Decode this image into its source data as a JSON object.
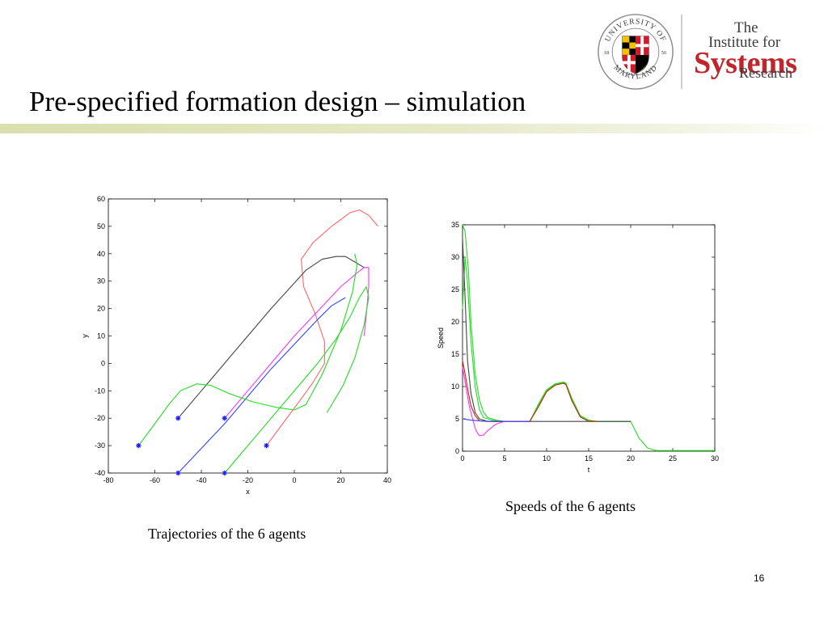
{
  "slide": {
    "title": "Pre-specified formation design – simulation",
    "page_number": "16",
    "caption_trajectories": "Trajectories of the 6 agents",
    "caption_speeds": "Speeds of the 6 agents"
  },
  "logos": {
    "umd": {
      "text_top": "UNIVERSITY OF",
      "text_bottom": "MARYLAND",
      "year_left": "18",
      "year_right": "56"
    },
    "isr": {
      "line1": "The",
      "line2": "Institute for",
      "line3": "Systems",
      "line4": "Research"
    }
  },
  "colors": {
    "title_bar": "#d9dfae",
    "isr_red": "#c0272d",
    "series": [
      "#ff6666",
      "#444444",
      "#ff33ff",
      "#3344ff",
      "#22dd22",
      "#22dd22"
    ]
  },
  "chart_data": [
    {
      "type": "line",
      "xlabel": "x",
      "ylabel": "y",
      "xlim": [
        -80,
        40
      ],
      "ylim": [
        -40,
        60
      ],
      "xticks": [
        -80,
        -60,
        -40,
        -20,
        0,
        20,
        40
      ],
      "yticks": [
        -40,
        -30,
        -20,
        -10,
        0,
        10,
        20,
        30,
        40,
        50,
        60
      ],
      "start_markers": [
        {
          "x": -67,
          "y": -30
        },
        {
          "x": -50,
          "y": -20
        },
        {
          "x": -50,
          "y": -40
        },
        {
          "x": -30,
          "y": -20
        },
        {
          "x": -30,
          "y": -40
        },
        {
          "x": -12,
          "y": -30
        }
      ],
      "series": [
        {
          "color": "#ff6666",
          "points": [
            [
              -12,
              -30
            ],
            [
              -5,
              -22
            ],
            [
              2,
              -14
            ],
            [
              8,
              -7
            ],
            [
              13,
              0
            ],
            [
              13,
              8
            ],
            [
              9,
              18
            ],
            [
              4,
              28
            ],
            [
              3,
              38
            ],
            [
              8,
              44
            ],
            [
              16,
              50
            ],
            [
              24,
              55
            ],
            [
              28,
              56
            ],
            [
              32,
              54
            ],
            [
              36,
              50
            ]
          ]
        },
        {
          "color": "#444444",
          "points": [
            [
              -50,
              -20
            ],
            [
              -40,
              -10
            ],
            [
              -25,
              5
            ],
            [
              -10,
              20
            ],
            [
              5,
              34
            ],
            [
              12,
              38
            ],
            [
              18,
              39
            ],
            [
              22,
              39
            ],
            [
              26,
              37
            ],
            [
              30,
              35
            ]
          ]
        },
        {
          "color": "#ff33ff",
          "points": [
            [
              -30,
              -20
            ],
            [
              -20,
              -10
            ],
            [
              -10,
              0
            ],
            [
              0,
              10
            ],
            [
              10,
              19
            ],
            [
              20,
              28
            ],
            [
              27,
              33
            ],
            [
              30,
              35
            ],
            [
              32,
              35
            ],
            [
              32,
              28
            ],
            [
              31,
              18
            ],
            [
              30,
              10
            ]
          ]
        },
        {
          "color": "#3344ff",
          "points": [
            [
              -50,
              -40
            ],
            [
              -40,
              -31
            ],
            [
              -30,
              -22
            ],
            [
              -20,
              -12
            ],
            [
              -10,
              -2
            ],
            [
              0,
              7
            ],
            [
              10,
              16
            ],
            [
              16,
              21
            ],
            [
              22,
              24
            ]
          ]
        },
        {
          "color": "#22dd22",
          "points": [
            [
              -67,
              -30
            ],
            [
              -60,
              -22
            ],
            [
              -54,
              -15
            ],
            [
              -49,
              -10
            ],
            [
              -42,
              -7.5
            ],
            [
              -36,
              -8
            ],
            [
              -28,
              -11
            ],
            [
              -18,
              -14
            ],
            [
              -8,
              -16
            ],
            [
              0,
              -17
            ],
            [
              5,
              -15
            ],
            [
              12,
              -4
            ],
            [
              20,
              12
            ],
            [
              25,
              26
            ],
            [
              27,
              36
            ],
            [
              26,
              40
            ]
          ]
        },
        {
          "color": "#22dd22",
          "points": [
            [
              -30,
              -40
            ],
            [
              -22,
              -32
            ],
            [
              -14,
              -24
            ],
            [
              -6,
              -16
            ],
            [
              2,
              -8
            ],
            [
              10,
              0
            ],
            [
              18,
              9
            ],
            [
              24,
              17
            ],
            [
              28,
              24
            ],
            [
              31,
              28
            ],
            [
              32,
              24
            ],
            [
              30,
              14
            ],
            [
              26,
              2
            ],
            [
              21,
              -8
            ],
            [
              14,
              -18
            ]
          ]
        }
      ]
    },
    {
      "type": "line",
      "xlabel": "t",
      "ylabel": "Speed",
      "xlim": [
        0,
        30
      ],
      "ylim": [
        0,
        35
      ],
      "xticks": [
        0,
        5,
        10,
        15,
        20,
        25,
        30
      ],
      "yticks": [
        0,
        5,
        10,
        15,
        20,
        25,
        30,
        35
      ],
      "series": [
        {
          "color": "#22dd22",
          "points": [
            [
              0,
              35
            ],
            [
              0.3,
              34
            ],
            [
              0.7,
              28
            ],
            [
              1,
              20
            ],
            [
              1.5,
              12
            ],
            [
              2,
              8
            ],
            [
              2.5,
              6
            ],
            [
              3,
              5.2
            ],
            [
              4,
              4.8
            ],
            [
              5,
              4.6
            ],
            [
              8,
              4.6
            ],
            [
              9,
              7
            ],
            [
              10,
              9.3
            ],
            [
              11,
              10.3
            ],
            [
              12,
              10.6
            ],
            [
              12.3,
              10.4
            ],
            [
              13,
              8
            ],
            [
              14,
              5.5
            ],
            [
              15,
              4.8
            ],
            [
              16,
              4.6
            ],
            [
              20,
              4.6
            ],
            [
              21,
              2
            ],
            [
              22,
              0.5
            ],
            [
              23,
              0.1
            ],
            [
              30,
              0.1
            ]
          ]
        },
        {
          "color": "#22dd22",
          "points": [
            [
              0,
              22
            ],
            [
              0.3,
              30
            ],
            [
              0.6,
              26
            ],
            [
              1,
              17
            ],
            [
              1.5,
              10
            ],
            [
              2,
              6.5
            ],
            [
              2.5,
              5.2
            ],
            [
              3.5,
              4.8
            ],
            [
              5,
              4.6
            ],
            [
              8,
              4.6
            ],
            [
              9,
              7.2
            ],
            [
              10,
              9.5
            ],
            [
              11,
              10.4
            ],
            [
              12,
              10.7
            ],
            [
              12.3,
              10.5
            ],
            [
              13,
              8.2
            ],
            [
              14,
              5.5
            ],
            [
              15,
              4.7
            ],
            [
              16,
              4.6
            ],
            [
              20,
              4.6
            ]
          ]
        },
        {
          "color": "#444444",
          "points": [
            [
              0,
              33
            ],
            [
              0.3,
              24
            ],
            [
              0.6,
              14
            ],
            [
              1,
              9
            ],
            [
              1.5,
              6
            ],
            [
              2,
              5
            ],
            [
              3,
              4.6
            ],
            [
              5,
              4.6
            ],
            [
              10,
              4.6
            ],
            [
              15,
              4.6
            ],
            [
              20,
              4.6
            ]
          ]
        },
        {
          "color": "#cc2200",
          "points": [
            [
              0,
              14
            ],
            [
              0.3,
              12
            ],
            [
              0.7,
              9
            ],
            [
              1,
              7
            ],
            [
              1.5,
              5.5
            ],
            [
              2,
              4.7
            ],
            [
              3,
              4.6
            ],
            [
              8,
              4.6
            ],
            [
              9,
              6.8
            ],
            [
              10,
              9.2
            ],
            [
              11,
              10.2
            ],
            [
              12,
              10.5
            ],
            [
              12.3,
              10.3
            ],
            [
              13,
              7.8
            ],
            [
              14,
              5.3
            ],
            [
              15,
              4.6
            ],
            [
              16,
              4.6
            ]
          ]
        },
        {
          "color": "#ff33ff",
          "points": [
            [
              0,
              13
            ],
            [
              0.4,
              10
            ],
            [
              0.8,
              7
            ],
            [
              1.2,
              5
            ],
            [
              1.6,
              3.2
            ],
            [
              2,
              2.4
            ],
            [
              2.5,
              2.5
            ],
            [
              3,
              3.2
            ],
            [
              4,
              4.2
            ],
            [
              5,
              4.6
            ],
            [
              8,
              4.6
            ]
          ]
        },
        {
          "color": "#3344ff",
          "points": [
            [
              0,
              5
            ],
            [
              0.5,
              4.9
            ],
            [
              1,
              4.8
            ],
            [
              2,
              4.7
            ],
            [
              3,
              4.6
            ],
            [
              8,
              4.6
            ]
          ]
        }
      ]
    }
  ]
}
